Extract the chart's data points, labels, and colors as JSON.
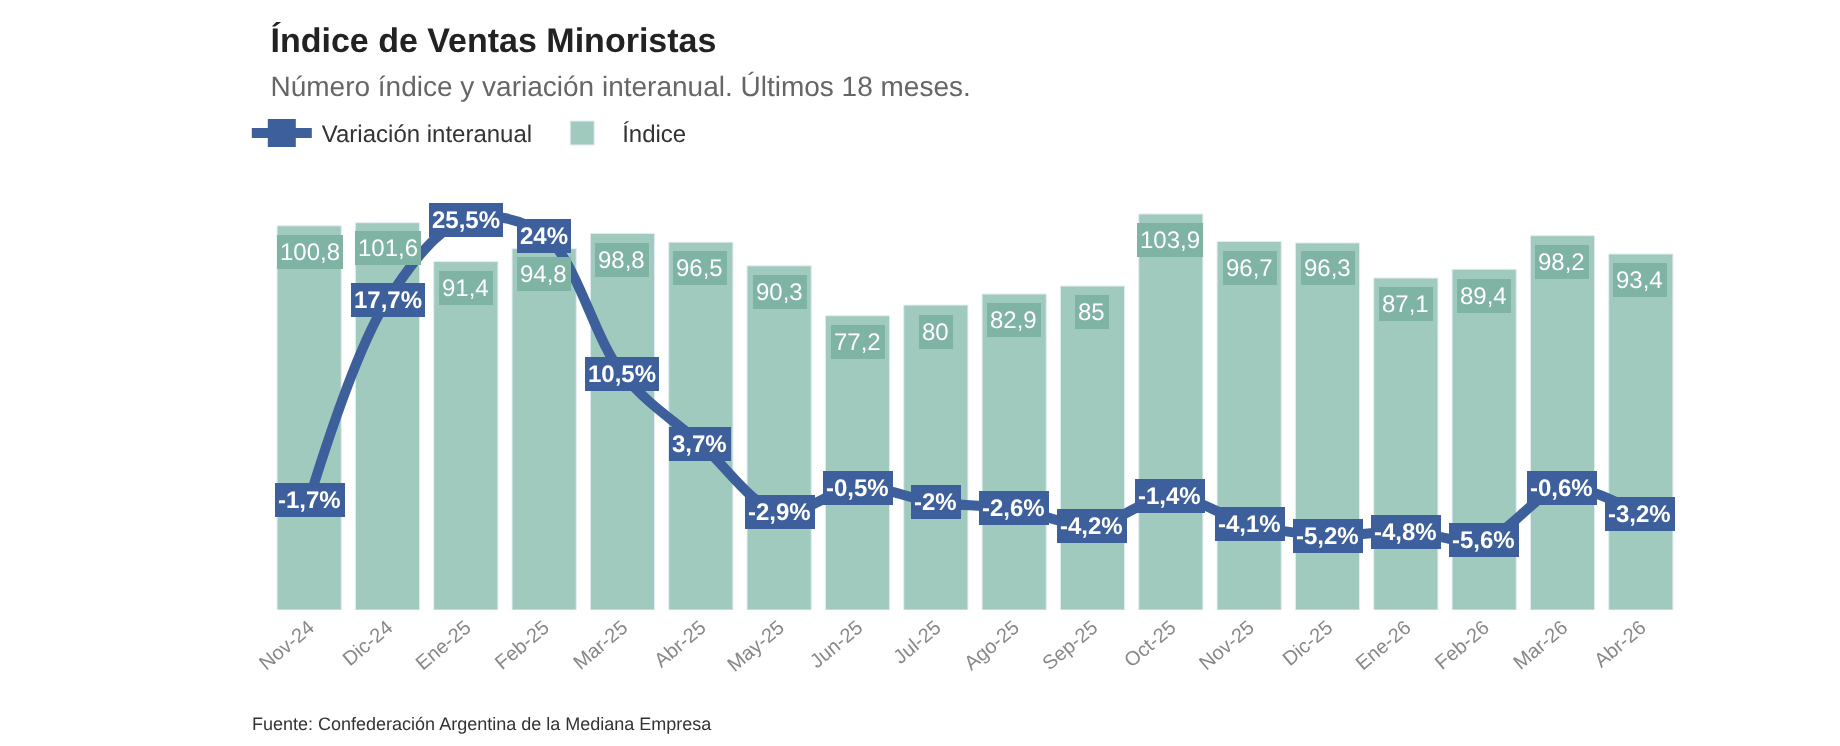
{
  "chart_data": {
    "type": "bar",
    "title": "Índice de Ventas Minoristas",
    "subtitle": "Número índice y variación interanual. Últimos 18 meses.",
    "categories": [
      "Nov-24",
      "Dic-24",
      "Ene-25",
      "Feb-25",
      "Mar-25",
      "Abr-25",
      "May-25",
      "Jun-25",
      "Jul-25",
      "Ago-25",
      "Sep-25",
      "Oct-25",
      "Nov-25",
      "Dic-25",
      "Ene-26",
      "Feb-26",
      "Mar-26",
      "Abr-26"
    ],
    "series": [
      {
        "name": "Variación interanual",
        "type": "line",
        "axis": "y2",
        "color": "#3d5f9b",
        "marker": "square",
        "line_style": "solid",
        "values": [
          -1.7,
          17.7,
          25.5,
          24,
          10.5,
          3.7,
          -2.9,
          -0.5,
          -2,
          -2.6,
          -4.2,
          -1.4,
          -4.1,
          -5.2,
          -4.8,
          -5.6,
          -0.6,
          -3.2
        ],
        "value_labels": [
          "-1,7%",
          "17,7%",
          "25,5%",
          "24%",
          "10,5%",
          "3,7%",
          "-2,9%",
          "-0,5%",
          "-2%",
          "-2,6%",
          "-4,2%",
          "-1,4%",
          "-4,1%",
          "-5,2%",
          "-4,8%",
          "-5,6%",
          "-0,6%",
          "-3,2%"
        ]
      },
      {
        "name": "Índice",
        "color": "#9fcabd",
        "values": [
          100.8,
          101.6,
          91.4,
          94.8,
          98.8,
          96.5,
          90.3,
          77.2,
          80,
          82.9,
          85,
          103.9,
          96.7,
          96.3,
          87.1,
          89.4,
          98.2,
          93.4
        ],
        "value_labels": [
          "100,8",
          "101,6",
          "91,4",
          "94,8",
          "98,8",
          "96,5",
          "90,3",
          "77,2",
          "80",
          "82,9",
          "85",
          "103,9",
          "96,7",
          "96,3",
          "87,1",
          "89,4",
          "98,2",
          "93,4"
        ]
      }
    ],
    "legend": "top left",
    "annotations": [
      "Fuente: Confederación Argentina de la Mediana Empresa"
    ]
  }
}
